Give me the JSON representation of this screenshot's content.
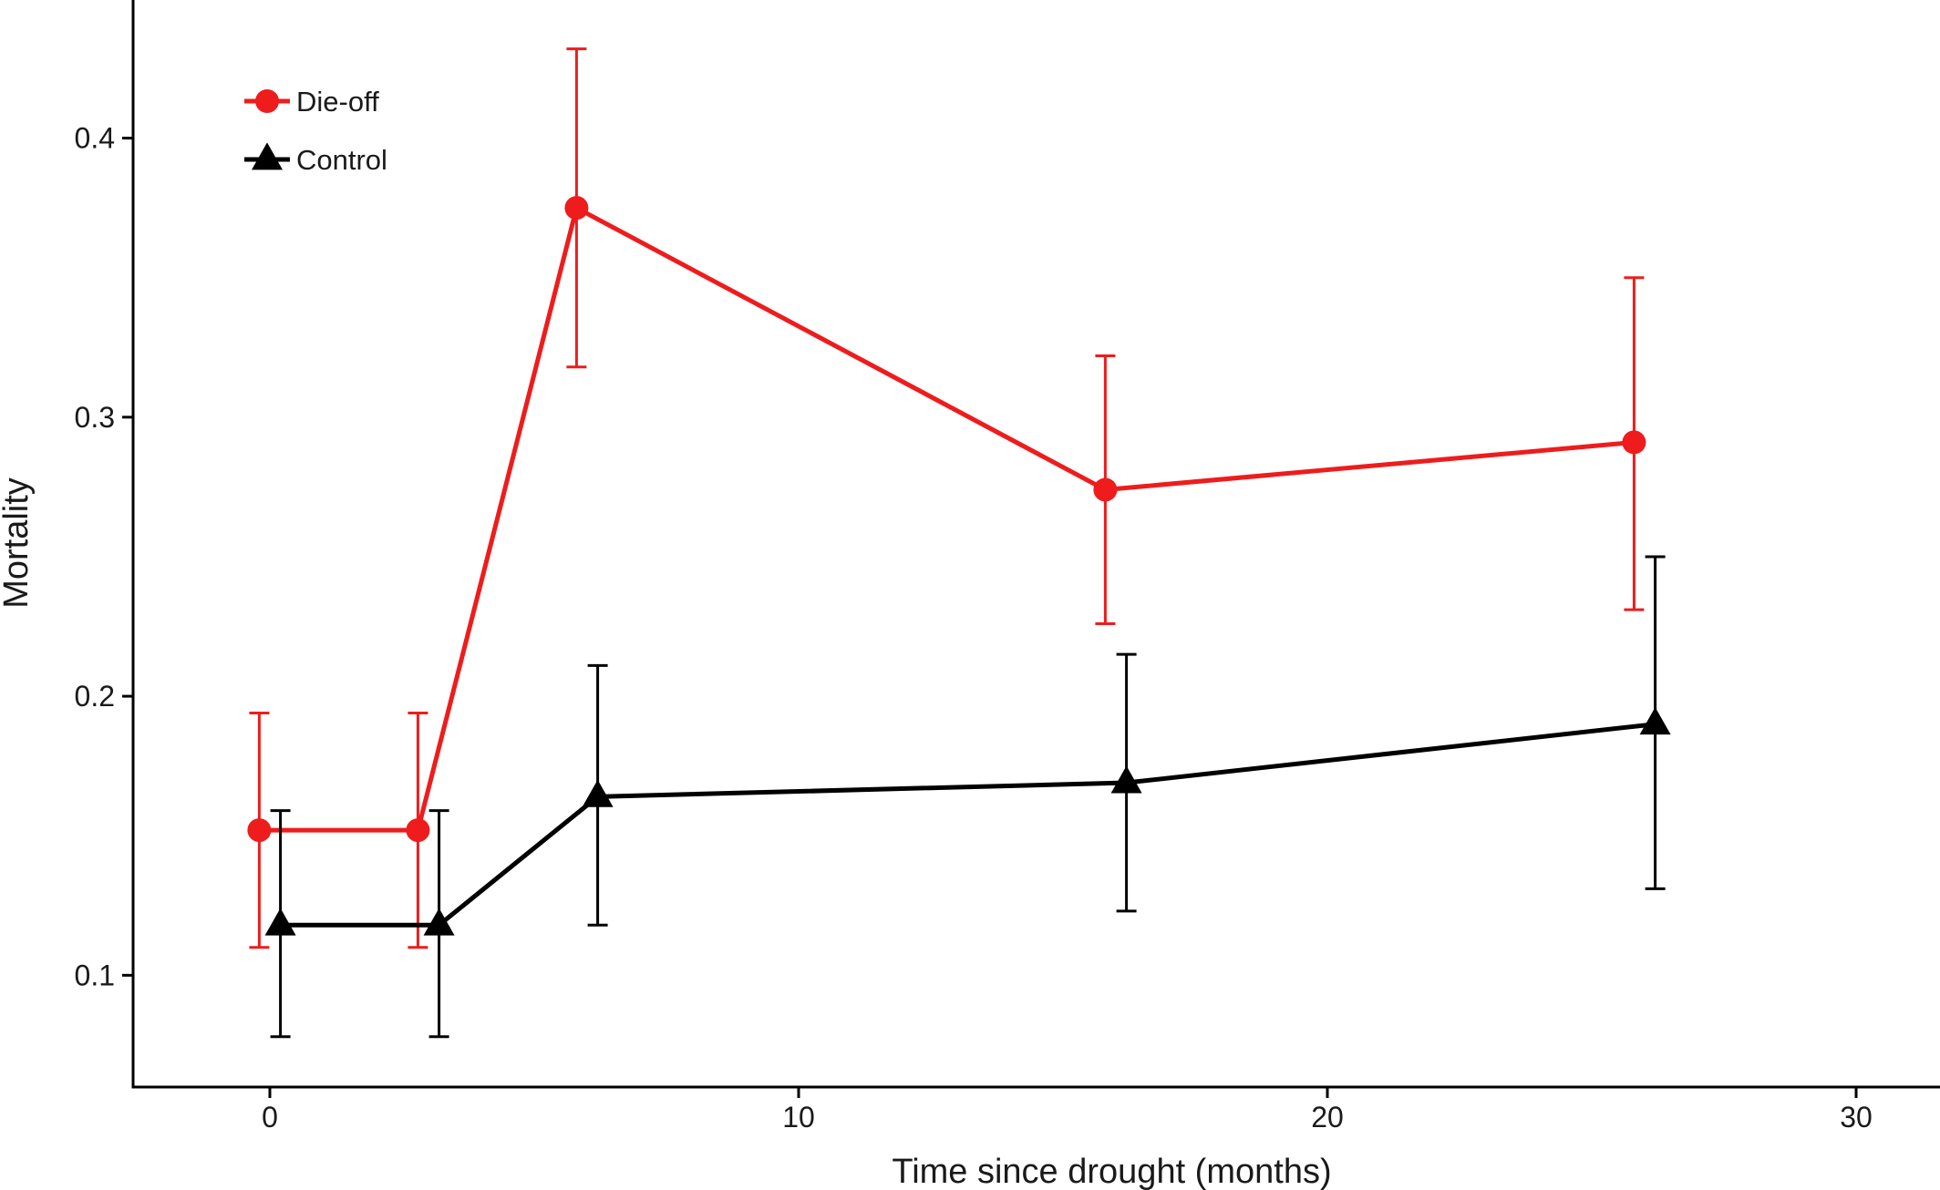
{
  "chart_data": {
    "type": "line",
    "title": "",
    "xlabel": "Time since drought (months)",
    "ylabel": "Mortality",
    "xlim": [
      -2.5,
      31.5
    ],
    "ylim": [
      0.06,
      0.45
    ],
    "x_ticks": [
      0,
      10,
      20,
      30
    ],
    "y_ticks": [
      0.1,
      0.2,
      0.3,
      0.4
    ],
    "x_tick_labels": [
      "0",
      "10",
      "20",
      "30"
    ],
    "y_tick_labels": [
      "0.1",
      "0.2",
      "0.3",
      "0.4"
    ],
    "grid": false,
    "legend_position": "top-left",
    "error_bars": true,
    "series": [
      {
        "name": "Die-off",
        "color": "#ee1c1c",
        "marker": "circle",
        "x": [
          -0.2,
          2.8,
          5.8,
          15.8,
          25.8
        ],
        "y": [
          0.152,
          0.152,
          0.375,
          0.274,
          0.291
        ],
        "y_lower": [
          0.11,
          0.11,
          0.318,
          0.226,
          0.231
        ],
        "y_upper": [
          0.194,
          0.194,
          0.432,
          0.322,
          0.35
        ]
      },
      {
        "name": "Control",
        "color": "#000000",
        "marker": "triangle",
        "x": [
          0.2,
          3.2,
          6.2,
          16.2,
          26.2
        ],
        "y": [
          0.118,
          0.118,
          0.164,
          0.169,
          0.19
        ],
        "y_lower": [
          0.078,
          0.078,
          0.118,
          0.123,
          0.131
        ],
        "y_upper": [
          0.159,
          0.159,
          0.211,
          0.215,
          0.25
        ]
      }
    ]
  }
}
